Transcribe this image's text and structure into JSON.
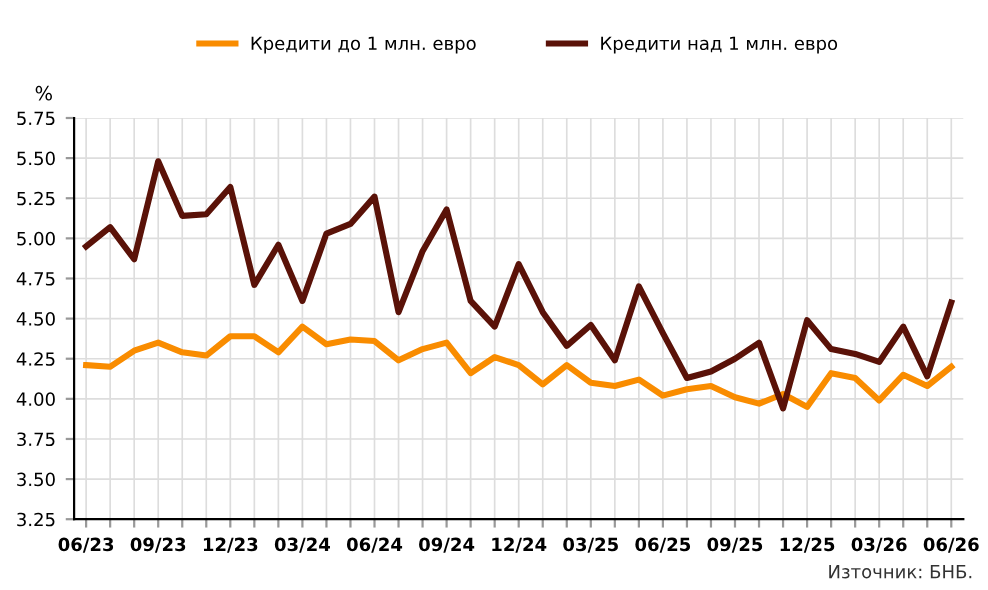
{
  "chart_data": {
    "type": "line",
    "ylabel": "%",
    "categories": [
      "06/23",
      null,
      null,
      "09/23",
      null,
      null,
      "12/23",
      null,
      null,
      "03/24",
      null,
      null,
      "06/24",
      null,
      null,
      "09/24",
      null,
      null,
      "12/24",
      null,
      null,
      "03/25",
      null,
      null,
      "06/25",
      null,
      null,
      "09/25",
      null,
      null,
      "12/25",
      null,
      null,
      "03/26",
      null,
      null,
      "06/26"
    ],
    "series": [
      {
        "name": "Кредити до 1 млн. евро",
        "color": "#f98c00",
        "values": [
          4.21,
          4.2,
          4.3,
          4.35,
          4.29,
          4.27,
          4.39,
          4.39,
          4.29,
          4.45,
          4.34,
          4.37,
          4.36,
          4.24,
          4.31,
          4.35,
          4.16,
          4.26,
          4.21,
          4.09,
          4.21,
          4.1,
          4.08,
          4.12,
          4.02,
          4.06,
          4.08,
          4.01,
          3.97,
          4.03,
          3.95,
          4.16,
          4.13,
          3.99,
          4.15,
          4.08,
          4.2
        ]
      },
      {
        "name": "Кредити над 1 млн. евро",
        "color": "#5a1208",
        "values": [
          4.95,
          5.07,
          4.87,
          5.48,
          5.14,
          5.15,
          5.32,
          4.71,
          4.96,
          4.61,
          5.03,
          5.09,
          5.26,
          4.54,
          4.92,
          5.18,
          4.61,
          4.45,
          4.84,
          4.54,
          4.33,
          4.46,
          4.24,
          4.7,
          4.41,
          4.13,
          4.17,
          4.25,
          4.35,
          3.94,
          4.49,
          4.31,
          4.28,
          4.23,
          4.45,
          4.14,
          4.6
        ]
      }
    ],
    "ylim": [
      3.25,
      5.75
    ],
    "yticks": [
      {
        "value": 3.25,
        "label": "3.25"
      },
      {
        "value": 3.5,
        "label": "3.50"
      },
      {
        "value": 3.75,
        "label": "3.75"
      },
      {
        "value": 4.0,
        "label": "4.00"
      },
      {
        "value": 4.25,
        "label": "4.25"
      },
      {
        "value": 4.5,
        "label": "4.50"
      },
      {
        "value": 4.75,
        "label": "4.75"
      },
      {
        "value": 5.0,
        "label": "5.00"
      },
      {
        "value": 5.25,
        "label": "5.25"
      },
      {
        "value": 5.5,
        "label": "5.50"
      },
      {
        "value": 5.75,
        "label": "5.75"
      }
    ],
    "grid": true,
    "legend": "top",
    "marker": "none",
    "line_style": "solid",
    "annotations": [
      "Източник: БНБ."
    ]
  }
}
